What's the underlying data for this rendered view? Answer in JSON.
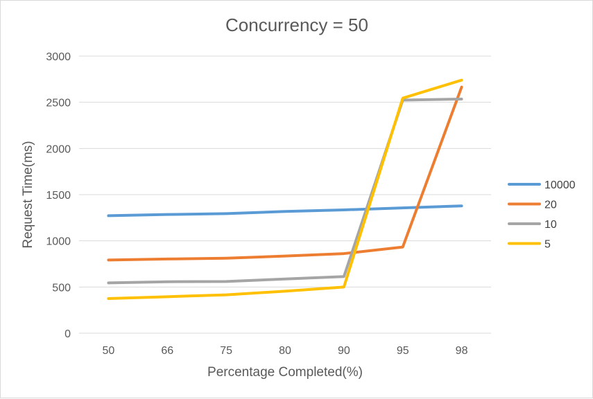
{
  "chart_data": {
    "type": "line",
    "title": "Concurrency = 50",
    "xlabel": "Percentage Completed(%)",
    "ylabel": "Request Time(ms)",
    "categories": [
      "50",
      "66",
      "75",
      "80",
      "90",
      "95",
      "98"
    ],
    "ylim": [
      0,
      3000
    ],
    "yticks": [
      "0",
      "500",
      "1000",
      "1500",
      "2000",
      "2500",
      "3000"
    ],
    "grid": true,
    "legend_position": "right",
    "series": [
      {
        "name": "10000",
        "color": "#5b9bd5",
        "values": [
          1272,
          1285,
          1295,
          1318,
          1335,
          1357,
          1378
        ]
      },
      {
        "name": "20",
        "color": "#ed7d31",
        "values": [
          792,
          803,
          812,
          835,
          862,
          933,
          2665
        ]
      },
      {
        "name": "10",
        "color": "#a5a5a5",
        "values": [
          545,
          557,
          560,
          587,
          613,
          2524,
          2535
        ]
      },
      {
        "name": "5",
        "color": "#ffc000",
        "values": [
          375,
          395,
          415,
          455,
          500,
          2545,
          2740
        ]
      }
    ]
  }
}
